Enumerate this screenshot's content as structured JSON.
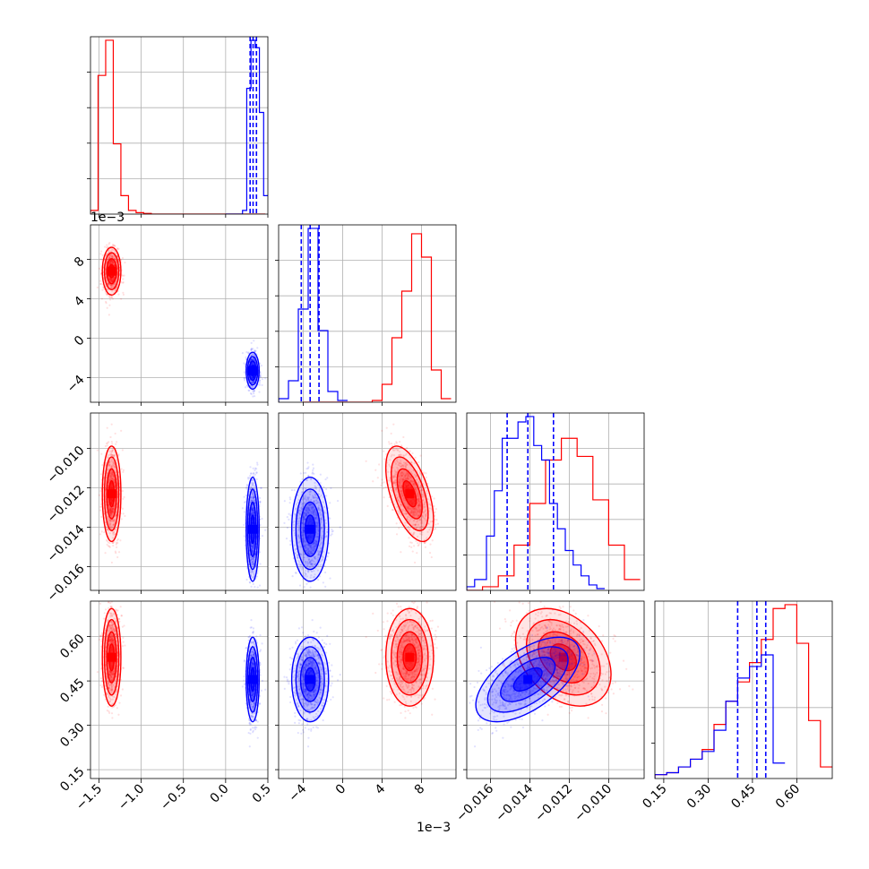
{
  "chart_data": {
    "type": "corner",
    "series": [
      {
        "name": "",
        "color": "#ff0000"
      },
      {
        "name": "",
        "color": "#0000ff"
      }
    ],
    "parameters": [
      {
        "range": [
          -1.6,
          0.5
        ],
        "tick_values": [
          -1.5,
          -1.0,
          -0.5,
          0.0,
          0.5
        ],
        "tick_labels": [
          "−1.5",
          "−1.0",
          "−0.5",
          "0.0",
          "0.5"
        ],
        "offset_text": "1e−3"
      },
      {
        "range": [
          -6.5,
          11.5
        ],
        "tick_values": [
          -4,
          0,
          4,
          8
        ],
        "tick_labels": [
          "−4",
          "0",
          "4",
          "8"
        ],
        "offset_text": "1e−3"
      },
      {
        "range": [
          -0.0172,
          -0.0082
        ],
        "tick_values": [
          -0.016,
          -0.014,
          -0.012,
          -0.01
        ],
        "tick_labels": [
          "−0.016",
          "−0.014",
          "−0.012",
          "−0.010"
        ],
        "offset_text": ""
      },
      {
        "range": [
          0.12,
          0.72
        ],
        "tick_values": [
          0.15,
          0.3,
          0.45,
          0.6
        ],
        "tick_labels": [
          "0.15",
          "0.30",
          "0.45",
          "0.60"
        ],
        "offset_text": ""
      }
    ],
    "marginals": [
      {
        "red": {
          "edges": [
            -1.6,
            -1.51,
            -1.42,
            -1.33,
            -1.24,
            -1.15,
            -1.06,
            -0.97,
            -0.88,
            -0.79,
            -0.7,
            -0.61,
            -0.52,
            -0.43,
            -0.34,
            -0.25,
            -0.16,
            -0.07,
            0.02,
            0.11,
            0.2,
            0.29,
            0.38,
            0.47
          ],
          "counts": [
            0.02,
            0.75,
            0.94,
            0.38,
            0.1,
            0.02,
            0.008,
            0.004,
            0,
            0,
            0,
            0,
            0,
            0,
            0,
            0,
            0,
            0,
            0,
            0,
            0,
            0,
            0
          ]
        },
        "blue": {
          "edges": [
            0.0,
            0.05,
            0.1,
            0.15,
            0.2,
            0.25,
            0.3,
            0.35,
            0.4,
            0.45,
            0.5
          ],
          "counts": [
            0,
            0,
            0,
            0,
            0.02,
            0.68,
            0.94,
            0.9,
            0.55,
            0.1
          ]
        },
        "quantile_lines": [
          0.29,
          0.325,
          0.365
        ]
      },
      {
        "red": {
          "edges": [
            -4,
            -3,
            -2,
            -1,
            0,
            1,
            2,
            3,
            4,
            5,
            6,
            7,
            8,
            9,
            10,
            11
          ],
          "counts": [
            0,
            0,
            0,
            0,
            0,
            0,
            0,
            0.01,
            0.1,
            0.36,
            0.62,
            0.94,
            0.81,
            0.18,
            0.02
          ]
        },
        "blue": {
          "edges": [
            -6.5,
            -5.5,
            -4.5,
            -3.5,
            -2.5,
            -1.5,
            -0.5,
            0.5
          ],
          "counts": [
            0.02,
            0.12,
            0.52,
            0.97,
            0.4,
            0.06,
            0.01
          ]
        },
        "quantile_lines": [
          -4.2,
          -3.3,
          -2.4
        ]
      },
      {
        "red": {
          "edges": [
            -0.0172,
            -0.0164,
            -0.0156,
            -0.0148,
            -0.014,
            -0.0132,
            -0.0124,
            -0.0116,
            -0.0108,
            -0.01,
            -0.0092,
            -0.0084
          ],
          "counts": [
            0,
            0.02,
            0.08,
            0.25,
            0.48,
            0.72,
            0.84,
            0.74,
            0.5,
            0.25,
            0.06
          ]
        },
        "blue": {
          "edges": [
            -0.0172,
            -0.0168,
            -0.0162,
            -0.0158,
            -0.0154,
            -0.015,
            -0.0146,
            -0.0142,
            -0.0138,
            -0.0134,
            -0.013,
            -0.0126,
            -0.0122,
            -0.0118,
            -0.0114,
            -0.011,
            -0.0106,
            -0.0102
          ],
          "counts": [
            0.02,
            0.06,
            0.3,
            0.55,
            0.84,
            0.84,
            0.93,
            0.96,
            0.8,
            0.72,
            0.48,
            0.34,
            0.22,
            0.14,
            0.08,
            0.03,
            0.01
          ]
        },
        "quantile_lines": [
          -0.01515,
          -0.0141,
          -0.0128
        ]
      },
      {
        "red": {
          "edges": [
            0.12,
            0.16,
            0.2,
            0.24,
            0.28,
            0.32,
            0.36,
            0.4,
            0.44,
            0.48,
            0.52,
            0.56,
            0.6,
            0.64,
            0.68,
            0.72
          ],
          "counts": [
            0.02,
            0.03,
            0.06,
            0.1,
            0.15,
            0.28,
            0.4,
            0.5,
            0.6,
            0.72,
            0.88,
            0.9,
            0.7,
            0.3,
            0.06
          ]
        },
        "blue": {
          "edges": [
            0.12,
            0.16,
            0.2,
            0.24,
            0.28,
            0.32,
            0.36,
            0.4,
            0.44,
            0.48,
            0.52,
            0.56
          ],
          "counts": [
            0.02,
            0.03,
            0.06,
            0.1,
            0.14,
            0.25,
            0.4,
            0.52,
            0.58,
            0.64,
            0.08
          ]
        },
        "quantile_lines": [
          0.4,
          0.465,
          0.495
        ]
      }
    ],
    "clouds": {
      "red": {
        "mean": [
          -1.35,
          6.8,
          -0.0123,
          0.53
        ],
        "sd": [
          0.05,
          1.1,
          0.0011,
          0.075
        ],
        "corr": [
          [
            1,
            0,
            0,
            0
          ],
          [
            0,
            1,
            -0.55,
            0
          ],
          [
            0,
            -0.55,
            1,
            -0.35
          ],
          [
            0,
            0,
            -0.35,
            1
          ]
        ]
      },
      "blue": {
        "mean": [
          0.32,
          -3.3,
          -0.0141,
          0.455
        ],
        "sd": [
          0.035,
          0.85,
          0.0012,
          0.065
        ],
        "corr": [
          [
            1,
            0,
            0,
            0
          ],
          [
            0,
            1,
            0,
            0
          ],
          [
            0,
            0,
            1,
            0.6
          ],
          [
            0,
            0,
            0.6,
            1
          ]
        ]
      }
    },
    "grid": true
  }
}
